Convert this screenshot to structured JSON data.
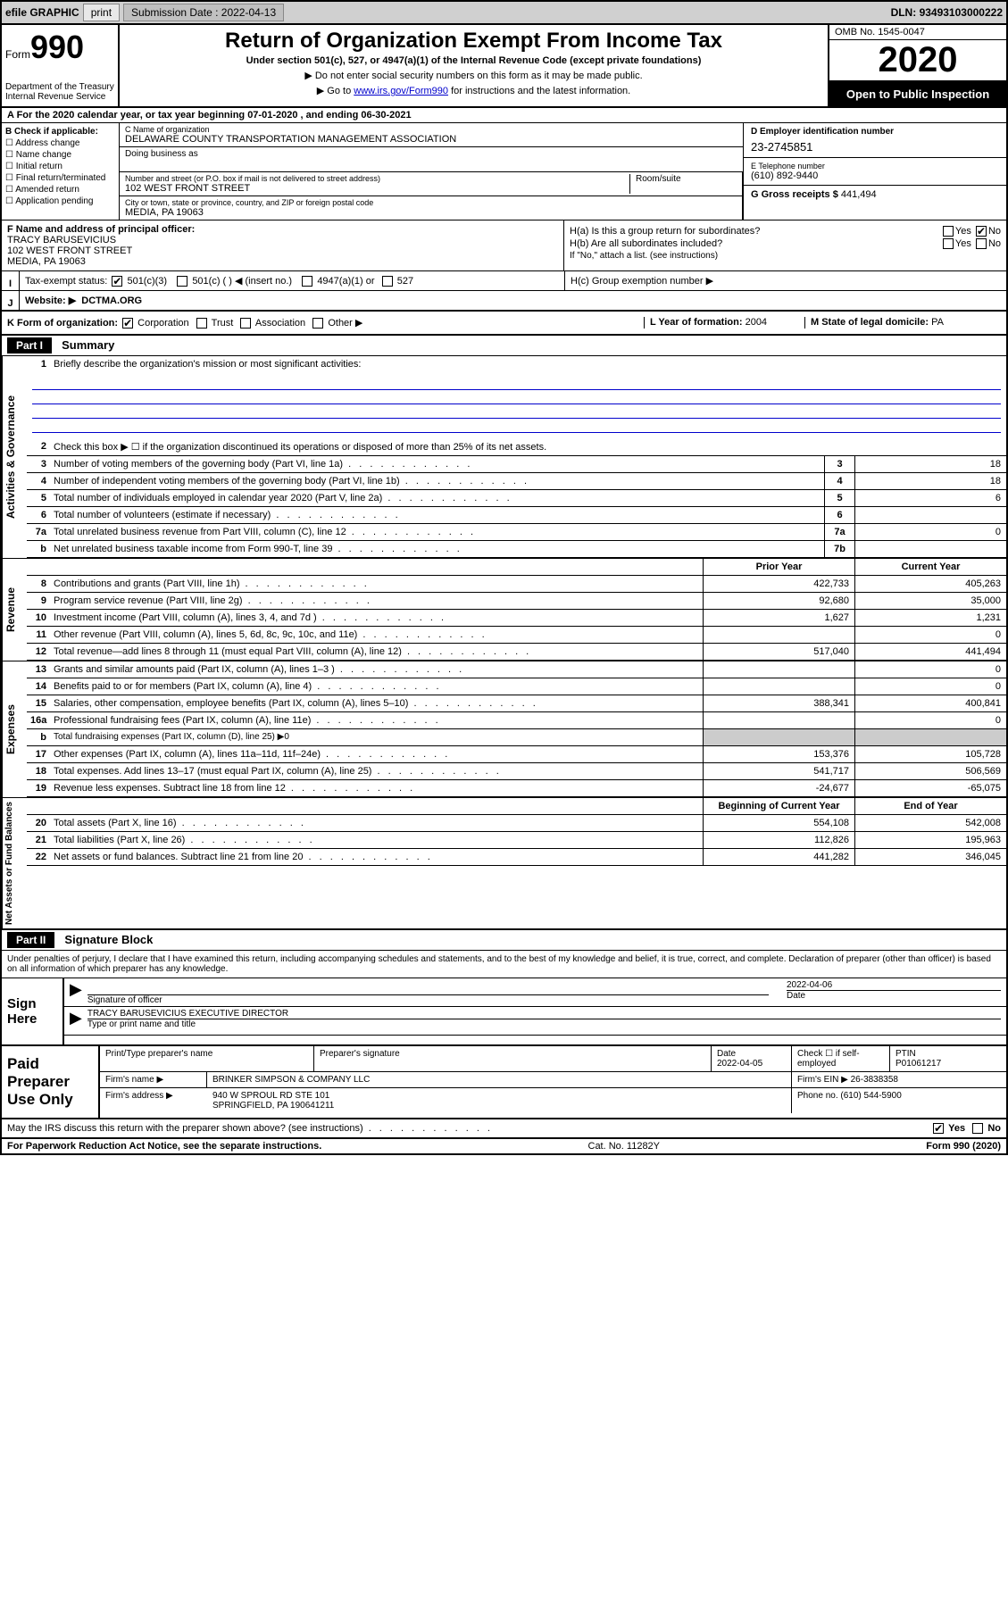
{
  "topbar": {
    "efile_label": "efile GRAPHIC",
    "print_label": "print",
    "submission_label": "Submission Date :",
    "submission_date": "2022-04-13",
    "dln_label": "DLN: ",
    "dln": "93493103000222"
  },
  "header": {
    "form_text": "Form",
    "form_no": "990",
    "dept": "Department of the Treasury\nInternal Revenue Service",
    "title": "Return of Organization Exempt From Income Tax",
    "subtitle": "Under section 501(c), 527, or 4947(a)(1) of the Internal Revenue Code (except private foundations)",
    "note1": "▶ Do not enter social security numbers on this form as it may be made public.",
    "note2_pre": "▶ Go to ",
    "note2_link": "www.irs.gov/Form990",
    "note2_post": " for instructions and the latest information.",
    "omb": "OMB No. 1545-0047",
    "year": "2020",
    "inspect": "Open to Public Inspection"
  },
  "line_a": "A For the 2020 calendar year, or tax year beginning 07-01-2020    , and ending 06-30-2021",
  "box_b": {
    "label": "B Check if applicable:",
    "opts": [
      "Address change",
      "Name change",
      "Initial return",
      "Final return/terminated",
      "Amended return",
      "Application pending"
    ]
  },
  "box_c": {
    "name_label": "C Name of organization",
    "name": "DELAWARE COUNTY TRANSPORTATION MANAGEMENT ASSOCIATION",
    "dba_label": "Doing business as",
    "street_label": "Number and street (or P.O. box if mail is not delivered to street address)",
    "street": "102 WEST FRONT STREET",
    "room_label": "Room/suite",
    "city_label": "City or town, state or province, country, and ZIP or foreign postal code",
    "city": "MEDIA, PA  19063"
  },
  "box_d": {
    "label": "D Employer identification number",
    "val": "23-2745851"
  },
  "box_e": {
    "label": "E Telephone number",
    "val": "(610) 892-9440"
  },
  "box_g": {
    "label": "G Gross receipts $",
    "val": "441,494"
  },
  "box_f": {
    "label": "F Name and address of principal officer:",
    "name": "TRACY BARUSEVICIUS",
    "street": "102 WEST FRONT STREET",
    "city": "MEDIA, PA  19063"
  },
  "box_h": {
    "ha": "H(a)  Is this a group return for subordinates?",
    "hb": "H(b)  Are all subordinates included?",
    "hb_note": "If \"No,\" attach a list. (see instructions)",
    "hc": "H(c)  Group exemption number ▶",
    "yes": "Yes",
    "no": "No"
  },
  "box_i": {
    "label": "Tax-exempt status:",
    "o1": "501(c)(3)",
    "o2": "501(c) (  ) ◀ (insert no.)",
    "o3": "4947(a)(1) or",
    "o4": "527"
  },
  "box_j": {
    "label": "Website: ▶",
    "val": "DCTMA.ORG"
  },
  "box_k": "K Form of organization:",
  "k_opts": [
    "Corporation",
    "Trust",
    "Association",
    "Other ▶"
  ],
  "box_l": {
    "label": "L Year of formation:",
    "val": "2004"
  },
  "box_m": {
    "label": "M State of legal domicile:",
    "val": "PA"
  },
  "part1": {
    "hdr": "Part I",
    "title": "Summary"
  },
  "summary": {
    "q1": "Briefly describe the organization's mission or most significant activities:",
    "q2": "Check this box ▶ ☐  if the organization discontinued its operations or disposed of more than 25% of its net assets.",
    "rows": [
      {
        "n": "3",
        "d": "Number of voting members of the governing body (Part VI, line 1a)",
        "b": "3",
        "v": "18"
      },
      {
        "n": "4",
        "d": "Number of independent voting members of the governing body (Part VI, line 1b)",
        "b": "4",
        "v": "18"
      },
      {
        "n": "5",
        "d": "Total number of individuals employed in calendar year 2020 (Part V, line 2a)",
        "b": "5",
        "v": "6"
      },
      {
        "n": "6",
        "d": "Total number of volunteers (estimate if necessary)",
        "b": "6",
        "v": ""
      },
      {
        "n": "7a",
        "d": "Total unrelated business revenue from Part VIII, column (C), line 12",
        "b": "7a",
        "v": "0"
      },
      {
        "n": "b",
        "d": "Net unrelated business taxable income from Form 990-T, line 39",
        "b": "7b",
        "v": ""
      }
    ],
    "vtab1": "Activities & Governance"
  },
  "revenue": {
    "vtab": "Revenue",
    "hdr_prior": "Prior Year",
    "hdr_curr": "Current Year",
    "rows": [
      {
        "n": "8",
        "d": "Contributions and grants (Part VIII, line 1h)",
        "p": "422,733",
        "c": "405,263"
      },
      {
        "n": "9",
        "d": "Program service revenue (Part VIII, line 2g)",
        "p": "92,680",
        "c": "35,000"
      },
      {
        "n": "10",
        "d": "Investment income (Part VIII, column (A), lines 3, 4, and 7d )",
        "p": "1,627",
        "c": "1,231"
      },
      {
        "n": "11",
        "d": "Other revenue (Part VIII, column (A), lines 5, 6d, 8c, 9c, 10c, and 11e)",
        "p": "",
        "c": "0"
      },
      {
        "n": "12",
        "d": "Total revenue—add lines 8 through 11 (must equal Part VIII, column (A), line 12)",
        "p": "517,040",
        "c": "441,494"
      }
    ]
  },
  "expenses": {
    "vtab": "Expenses",
    "rows": [
      {
        "n": "13",
        "d": "Grants and similar amounts paid (Part IX, column (A), lines 1–3 )",
        "p": "",
        "c": "0"
      },
      {
        "n": "14",
        "d": "Benefits paid to or for members (Part IX, column (A), line 4)",
        "p": "",
        "c": "0"
      },
      {
        "n": "15",
        "d": "Salaries, other compensation, employee benefits (Part IX, column (A), lines 5–10)",
        "p": "388,341",
        "c": "400,841"
      },
      {
        "n": "16a",
        "d": "Professional fundraising fees (Part IX, column (A), line 11e)",
        "p": "",
        "c": "0"
      },
      {
        "n": "b",
        "d": "Total fundraising expenses (Part IX, column (D), line 25) ▶0",
        "p": "—",
        "c": "—"
      },
      {
        "n": "17",
        "d": "Other expenses (Part IX, column (A), lines 11a–11d, 11f–24e)",
        "p": "153,376",
        "c": "105,728"
      },
      {
        "n": "18",
        "d": "Total expenses. Add lines 13–17 (must equal Part IX, column (A), line 25)",
        "p": "541,717",
        "c": "506,569"
      },
      {
        "n": "19",
        "d": "Revenue less expenses. Subtract line 18 from line 12",
        "p": "-24,677",
        "c": "-65,075"
      }
    ]
  },
  "netassets": {
    "vtab": "Net Assets or Fund Balances",
    "hdr_beg": "Beginning of Current Year",
    "hdr_end": "End of Year",
    "rows": [
      {
        "n": "20",
        "d": "Total assets (Part X, line 16)",
        "p": "554,108",
        "c": "542,008"
      },
      {
        "n": "21",
        "d": "Total liabilities (Part X, line 26)",
        "p": "112,826",
        "c": "195,963"
      },
      {
        "n": "22",
        "d": "Net assets or fund balances. Subtract line 21 from line 20",
        "p": "441,282",
        "c": "346,045"
      }
    ]
  },
  "part2": {
    "hdr": "Part II",
    "title": "Signature Block"
  },
  "sig_text": "Under penalties of perjury, I declare that I have examined this return, including accompanying schedules and statements, and to the best of my knowledge and belief, it is true, correct, and complete. Declaration of preparer (other than officer) is based on all information of which preparer has any knowledge.",
  "sign": {
    "here": "Sign Here",
    "sig_label": "Signature of officer",
    "date_label": "Date",
    "date": "2022-04-06",
    "name": "TRACY BARUSEVICIUS  EXECUTIVE DIRECTOR",
    "name_label": "Type or print name and title"
  },
  "prep": {
    "label": "Paid Preparer Use Only",
    "h1": "Print/Type preparer's name",
    "h2": "Preparer's signature",
    "h3": "Date",
    "h4": "Check ☐ if self-employed",
    "h5": "PTIN",
    "date": "2022-04-05",
    "ptin": "P01061217",
    "firm_label": "Firm's name    ▶",
    "firm": "BRINKER SIMPSON & COMPANY LLC",
    "ein_label": "Firm's EIN ▶",
    "ein": "26-3838358",
    "addr_label": "Firm's address ▶",
    "addr1": "940 W SPROUL RD STE 101",
    "addr2": "SPRINGFIELD, PA  190641211",
    "phone_label": "Phone no.",
    "phone": "(610) 544-5900"
  },
  "bottom_q": "May the IRS discuss this return with the preparer shown above? (see instructions)",
  "footer": {
    "left": "For Paperwork Reduction Act Notice, see the separate instructions.",
    "mid": "Cat. No. 11282Y",
    "right": "Form 990 (2020)"
  }
}
